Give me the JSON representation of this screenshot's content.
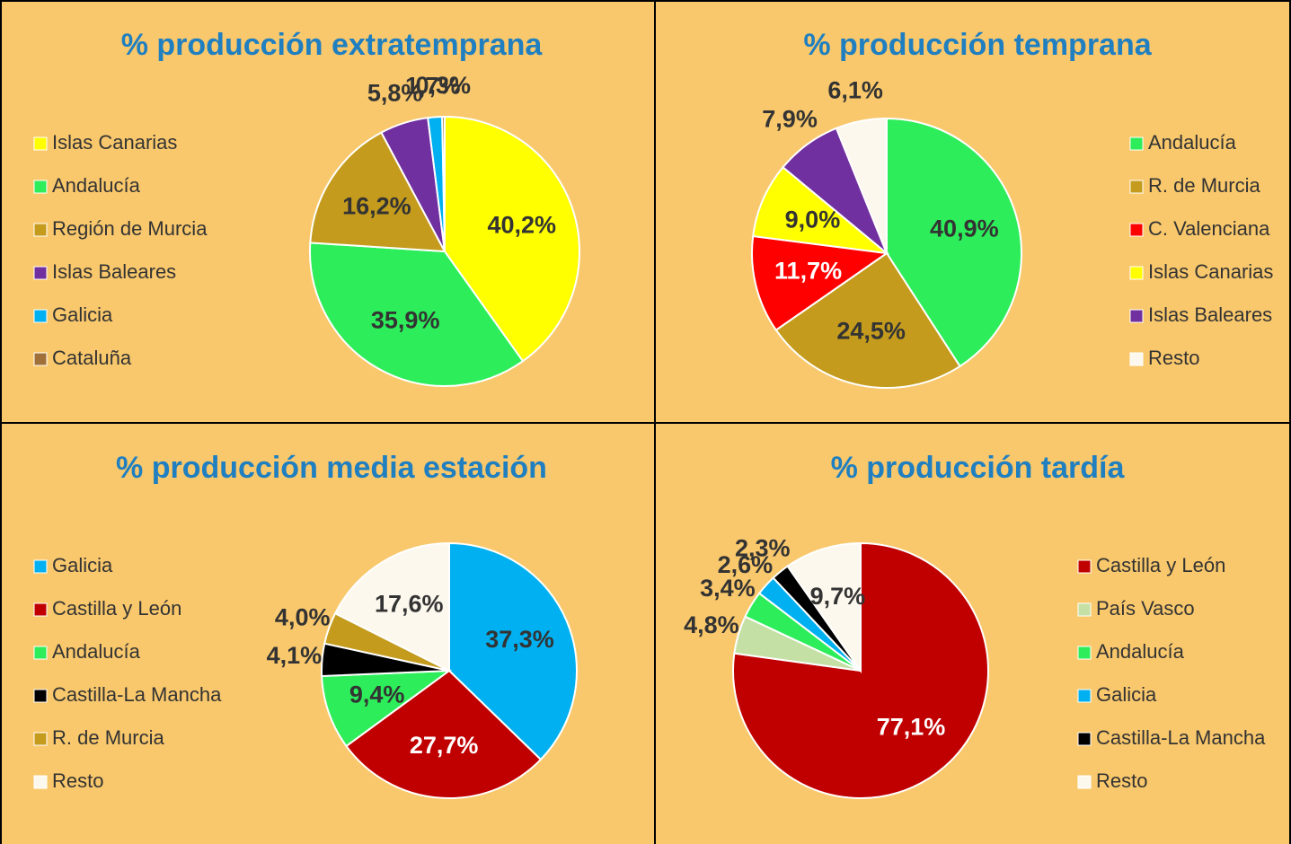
{
  "chart_data": [
    {
      "type": "pie",
      "title": "% producción extratemprana",
      "categories": [
        "Islas Canarias",
        "Andalucía",
        "Región de Murcia",
        "Islas Baleares",
        "Galicia",
        "Cataluña"
      ],
      "values": [
        40.2,
        35.9,
        16.2,
        5.8,
        1.7,
        0.3
      ],
      "value_labels": [
        "40,2%",
        "35,9%",
        "16,2%",
        "5,8%",
        "1,7%",
        "0,3%"
      ],
      "colors": [
        "#ffff00",
        "#2ded5a",
        "#c49b1c",
        "#7030a0",
        "#00b0f0",
        "#a0703a"
      ],
      "legend": "left"
    },
    {
      "type": "pie",
      "title": "% producción temprana",
      "categories": [
        "Andalucía",
        "R. de Murcia",
        "C. Valenciana",
        "Islas Canarias",
        "Islas Baleares",
        "Resto"
      ],
      "values": [
        40.9,
        24.5,
        11.7,
        9.0,
        7.9,
        6.1
      ],
      "value_labels": [
        "40,9%",
        "24,5%",
        "11,7%",
        "9,0%",
        "7,9%",
        "6,1%"
      ],
      "colors": [
        "#2ded5a",
        "#c49b1c",
        "#ff0000",
        "#ffff00",
        "#7030a0",
        "#fdf8ee"
      ],
      "legend": "right"
    },
    {
      "type": "pie",
      "title": "% producción media estación",
      "categories": [
        "Galicia",
        "Castilla y León",
        "Andalucía",
        "Castilla-La Mancha",
        "R. de Murcia",
        "Resto"
      ],
      "values": [
        37.3,
        27.7,
        9.4,
        4.1,
        4.0,
        17.6
      ],
      "value_labels": [
        "37,3%",
        "27,7%",
        "9,4%",
        "4,1%",
        "4,0%",
        "17,6%"
      ],
      "colors": [
        "#00b0f0",
        "#c00000",
        "#2ded5a",
        "#000000",
        "#c49b1c",
        "#fdf8ee"
      ],
      "legend": "left"
    },
    {
      "type": "pie",
      "title": "% producción tardía",
      "categories": [
        "Castilla y León",
        "País Vasco",
        "Andalucía",
        "Galicia",
        "Castilla-La Mancha",
        "Resto"
      ],
      "values": [
        77.1,
        4.8,
        3.4,
        2.6,
        2.3,
        9.7
      ],
      "value_labels": [
        "77,1%",
        "4,8%",
        "3,4%",
        "2,6%",
        "2,3%",
        "9,7%"
      ],
      "colors": [
        "#c00000",
        "#c5e0a5",
        "#2ded5a",
        "#00b0f0",
        "#000000",
        "#fdf8ee"
      ],
      "legend": "right"
    }
  ]
}
